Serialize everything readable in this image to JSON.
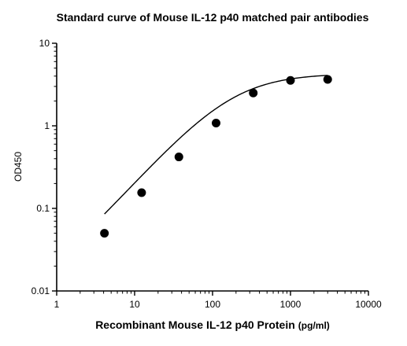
{
  "chart_data": {
    "type": "scatter",
    "title": "Standard curve of Mouse IL-12 p40 matched pair antibodies",
    "xlabel": "Recombinant Mouse IL-12 p40 Protein",
    "xlabel_unit": "(pg/ml)",
    "ylabel": "OD450",
    "x_scale": "log",
    "y_scale": "log",
    "xlim": [
      1,
      10000
    ],
    "ylim": [
      0.01,
      10
    ],
    "x_ticks": [
      "1",
      "10",
      "100",
      "1000",
      "10000"
    ],
    "y_ticks": [
      "0.01",
      "0.1",
      "1",
      "10"
    ],
    "grid": false,
    "legend": "none",
    "series": [
      {
        "x": [
          4.1,
          12.3,
          37,
          111,
          333,
          1000,
          3000
        ],
        "y": [
          0.05,
          0.155,
          0.42,
          1.08,
          2.5,
          3.55,
          3.65
        ]
      }
    ],
    "fit_curve": {
      "type": "4PL",
      "bottom": 0.006,
      "top": 4.3,
      "ec50": 180,
      "hill": 1.05
    },
    "colors": {
      "marker": "#000000",
      "line": "#000000"
    }
  }
}
